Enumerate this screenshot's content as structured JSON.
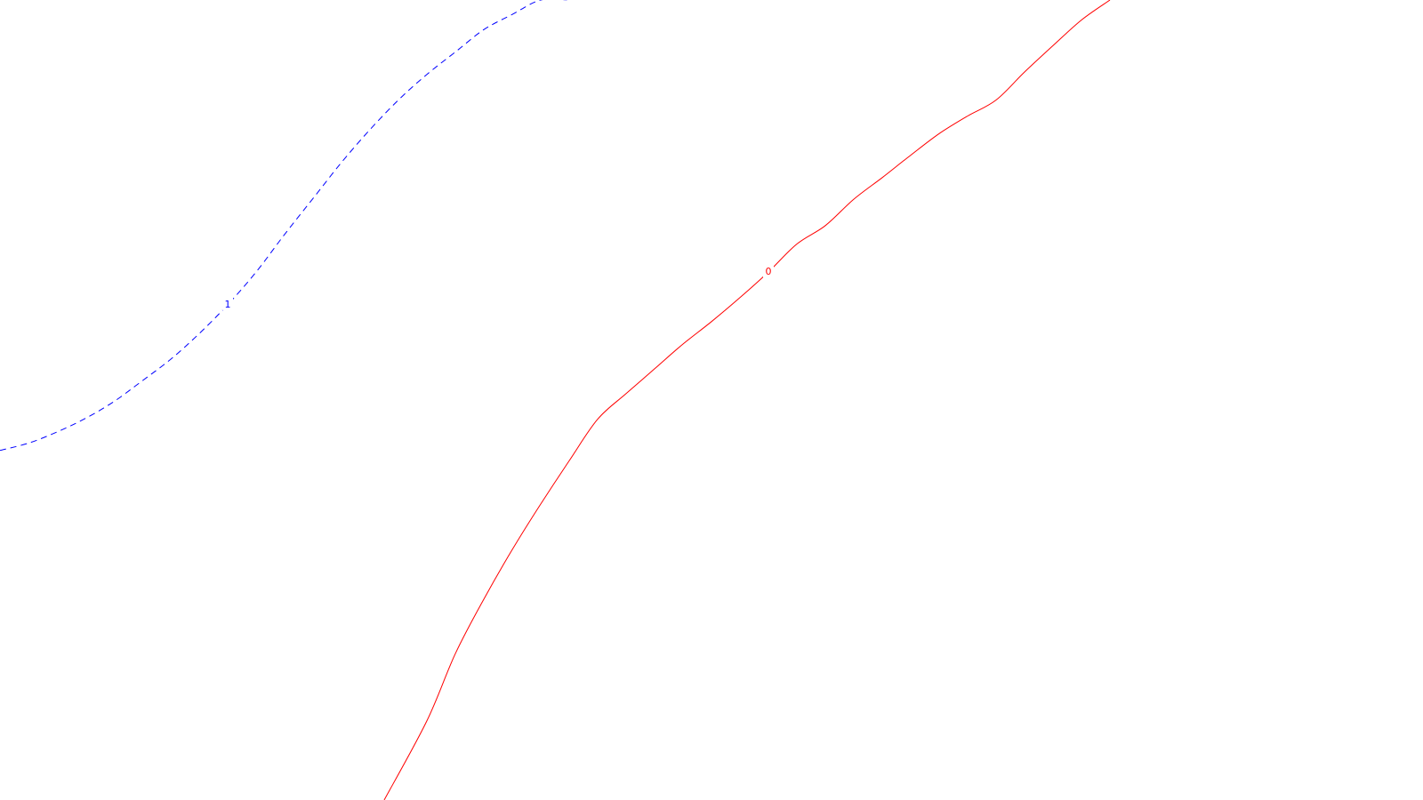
{
  "chart_data": {
    "type": "line",
    "title": "",
    "xlabel": "",
    "ylabel": "",
    "grid": false,
    "legend": "none",
    "series": [
      {
        "label": "1",
        "color": "#0000ff",
        "line_style": "dashed",
        "x": [
          0.0,
          0.02,
          0.04,
          0.06,
          0.08,
          0.1,
          0.12,
          0.14,
          0.16,
          0.18,
          0.2,
          0.22,
          0.24,
          0.26,
          0.28,
          0.3,
          0.32,
          0.34,
          0.36,
          0.38,
          0.4
        ],
        "y": [
          0.437,
          0.446,
          0.46,
          0.477,
          0.498,
          0.524,
          0.551,
          0.583,
          0.619,
          0.66,
          0.707,
          0.752,
          0.797,
          0.838,
          0.875,
          0.907,
          0.935,
          0.963,
          0.982,
          1.0,
          1.0
        ]
      },
      {
        "label": "0",
        "color": "#ff0000",
        "line_style": "solid",
        "x": [
          0.27,
          0.3,
          0.32,
          0.34,
          0.36,
          0.38,
          0.4,
          0.42,
          0.44,
          0.46,
          0.48,
          0.5,
          0.52,
          0.54,
          0.56,
          0.58,
          0.6,
          0.62,
          0.64,
          0.66,
          0.68,
          0.7,
          0.72,
          0.74,
          0.76,
          0.78
        ],
        "y": [
          0.0,
          0.099,
          0.183,
          0.251,
          0.313,
          0.37,
          0.424,
          0.476,
          0.508,
          0.539,
          0.57,
          0.598,
          0.628,
          0.66,
          0.695,
          0.718,
          0.751,
          0.778,
          0.806,
          0.833,
          0.855,
          0.875,
          0.91,
          0.943,
          0.975,
          1.0
        ]
      }
    ],
    "xlim": [
      0,
      1
    ],
    "ylim": [
      0,
      1
    ]
  }
}
